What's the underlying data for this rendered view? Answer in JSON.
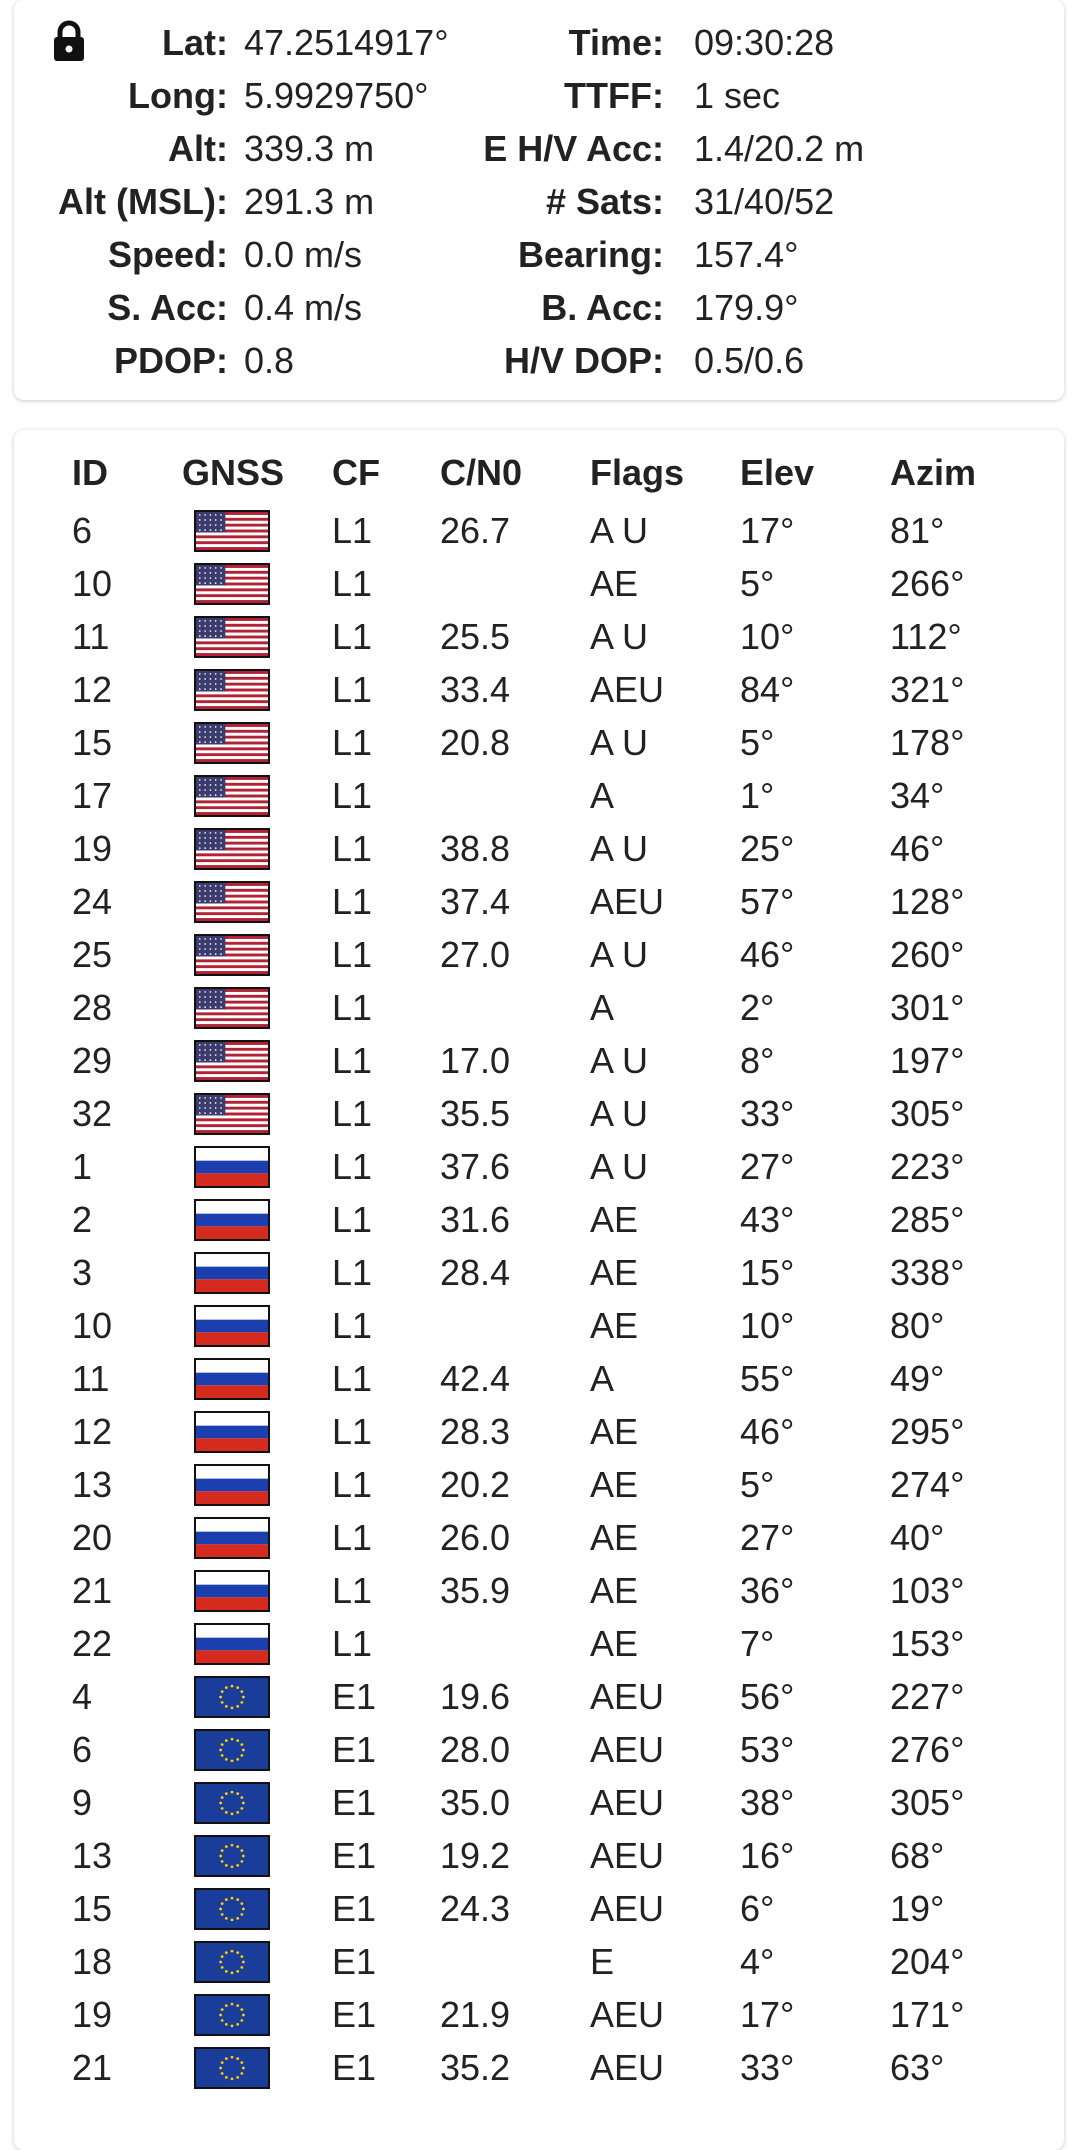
{
  "status": {
    "lock_icon": "lock-icon",
    "left": [
      {
        "key": "lat",
        "label": "Lat:",
        "value": "47.2514917°"
      },
      {
        "key": "long",
        "label": "Long:",
        "value": "5.9929750°"
      },
      {
        "key": "alt",
        "label": "Alt:",
        "value": "339.3 m"
      },
      {
        "key": "alt-msl",
        "label": "Alt (MSL):",
        "value": "291.3 m"
      },
      {
        "key": "speed",
        "label": "Speed:",
        "value": "0.0 m/s"
      },
      {
        "key": "s-acc",
        "label": "S. Acc:",
        "value": "0.4 m/s"
      },
      {
        "key": "pdop",
        "label": "PDOP:",
        "value": "0.8"
      }
    ],
    "right": [
      {
        "key": "time",
        "label": "Time:",
        "value": "09:30:28"
      },
      {
        "key": "ttff",
        "label": "TTFF:",
        "value": "1 sec"
      },
      {
        "key": "ehv-acc",
        "label": "E H/V Acc:",
        "value": "1.4/20.2 m"
      },
      {
        "key": "sats",
        "label": "# Sats:",
        "value": "31/40/52"
      },
      {
        "key": "bearing",
        "label": "Bearing:",
        "value": "157.4°"
      },
      {
        "key": "b-acc",
        "label": "B. Acc:",
        "value": "179.9°"
      },
      {
        "key": "hv-dop",
        "label": "H/V DOP:",
        "value": "0.5/0.6"
      }
    ]
  },
  "table": {
    "headers": [
      "ID",
      "GNSS",
      "CF",
      "C/N0",
      "Flags",
      "Elev",
      "Azim"
    ],
    "rows": [
      {
        "id": "6",
        "gnss": "us",
        "cf": "L1",
        "cn0": "26.7",
        "flags": "A U",
        "elev": "17°",
        "azim": "81°"
      },
      {
        "id": "10",
        "gnss": "us",
        "cf": "L1",
        "cn0": "",
        "flags": "AE",
        "elev": "5°",
        "azim": "266°"
      },
      {
        "id": "11",
        "gnss": "us",
        "cf": "L1",
        "cn0": "25.5",
        "flags": "A U",
        "elev": "10°",
        "azim": "112°"
      },
      {
        "id": "12",
        "gnss": "us",
        "cf": "L1",
        "cn0": "33.4",
        "flags": "AEU",
        "elev": "84°",
        "azim": "321°"
      },
      {
        "id": "15",
        "gnss": "us",
        "cf": "L1",
        "cn0": "20.8",
        "flags": "A U",
        "elev": "5°",
        "azim": "178°"
      },
      {
        "id": "17",
        "gnss": "us",
        "cf": "L1",
        "cn0": "",
        "flags": "A",
        "elev": "1°",
        "azim": "34°"
      },
      {
        "id": "19",
        "gnss": "us",
        "cf": "L1",
        "cn0": "38.8",
        "flags": "A U",
        "elev": "25°",
        "azim": "46°"
      },
      {
        "id": "24",
        "gnss": "us",
        "cf": "L1",
        "cn0": "37.4",
        "flags": "AEU",
        "elev": "57°",
        "azim": "128°"
      },
      {
        "id": "25",
        "gnss": "us",
        "cf": "L1",
        "cn0": "27.0",
        "flags": "A U",
        "elev": "46°",
        "azim": "260°"
      },
      {
        "id": "28",
        "gnss": "us",
        "cf": "L1",
        "cn0": "",
        "flags": "A",
        "elev": "2°",
        "azim": "301°"
      },
      {
        "id": "29",
        "gnss": "us",
        "cf": "L1",
        "cn0": "17.0",
        "flags": "A U",
        "elev": "8°",
        "azim": "197°"
      },
      {
        "id": "32",
        "gnss": "us",
        "cf": "L1",
        "cn0": "35.5",
        "flags": "A U",
        "elev": "33°",
        "azim": "305°"
      },
      {
        "id": "1",
        "gnss": "ru",
        "cf": "L1",
        "cn0": "37.6",
        "flags": "A U",
        "elev": "27°",
        "azim": "223°"
      },
      {
        "id": "2",
        "gnss": "ru",
        "cf": "L1",
        "cn0": "31.6",
        "flags": "AE",
        "elev": "43°",
        "azim": "285°"
      },
      {
        "id": "3",
        "gnss": "ru",
        "cf": "L1",
        "cn0": "28.4",
        "flags": "AE",
        "elev": "15°",
        "azim": "338°"
      },
      {
        "id": "10",
        "gnss": "ru",
        "cf": "L1",
        "cn0": "",
        "flags": "AE",
        "elev": "10°",
        "azim": "80°"
      },
      {
        "id": "11",
        "gnss": "ru",
        "cf": "L1",
        "cn0": "42.4",
        "flags": "A",
        "elev": "55°",
        "azim": "49°"
      },
      {
        "id": "12",
        "gnss": "ru",
        "cf": "L1",
        "cn0": "28.3",
        "flags": "AE",
        "elev": "46°",
        "azim": "295°"
      },
      {
        "id": "13",
        "gnss": "ru",
        "cf": "L1",
        "cn0": "20.2",
        "flags": "AE",
        "elev": "5°",
        "azim": "274°"
      },
      {
        "id": "20",
        "gnss": "ru",
        "cf": "L1",
        "cn0": "26.0",
        "flags": "AE",
        "elev": "27°",
        "azim": "40°"
      },
      {
        "id": "21",
        "gnss": "ru",
        "cf": "L1",
        "cn0": "35.9",
        "flags": "AE",
        "elev": "36°",
        "azim": "103°"
      },
      {
        "id": "22",
        "gnss": "ru",
        "cf": "L1",
        "cn0": "",
        "flags": "AE",
        "elev": "7°",
        "azim": "153°"
      },
      {
        "id": "4",
        "gnss": "eu",
        "cf": "E1",
        "cn0": "19.6",
        "flags": "AEU",
        "elev": "56°",
        "azim": "227°"
      },
      {
        "id": "6",
        "gnss": "eu",
        "cf": "E1",
        "cn0": "28.0",
        "flags": "AEU",
        "elev": "53°",
        "azim": "276°"
      },
      {
        "id": "9",
        "gnss": "eu",
        "cf": "E1",
        "cn0": "35.0",
        "flags": "AEU",
        "elev": "38°",
        "azim": "305°"
      },
      {
        "id": "13",
        "gnss": "eu",
        "cf": "E1",
        "cn0": "19.2",
        "flags": "AEU",
        "elev": "16°",
        "azim": "68°"
      },
      {
        "id": "15",
        "gnss": "eu",
        "cf": "E1",
        "cn0": "24.3",
        "flags": "AEU",
        "elev": "6°",
        "azim": "19°"
      },
      {
        "id": "18",
        "gnss": "eu",
        "cf": "E1",
        "cn0": "",
        "flags": " E",
        "elev": "4°",
        "azim": "204°"
      },
      {
        "id": "19",
        "gnss": "eu",
        "cf": "E1",
        "cn0": "21.9",
        "flags": "AEU",
        "elev": "17°",
        "azim": "171°"
      },
      {
        "id": "21",
        "gnss": "eu",
        "cf": "E1",
        "cn0": "35.2",
        "flags": "AEU",
        "elev": "33°",
        "azim": "63°"
      }
    ]
  },
  "flag_icons": {
    "us": "usa-flag-icon",
    "ru": "russia-flag-icon",
    "eu": "eu-flag-icon"
  },
  "colors": {
    "us_red": "#b22234",
    "us_blue": "#3c3b6e",
    "ru_blue": "#1c3fb0",
    "ru_red": "#d52b1e",
    "eu_blue": "#1a3d99",
    "eu_gold": "#ffcc00"
  }
}
